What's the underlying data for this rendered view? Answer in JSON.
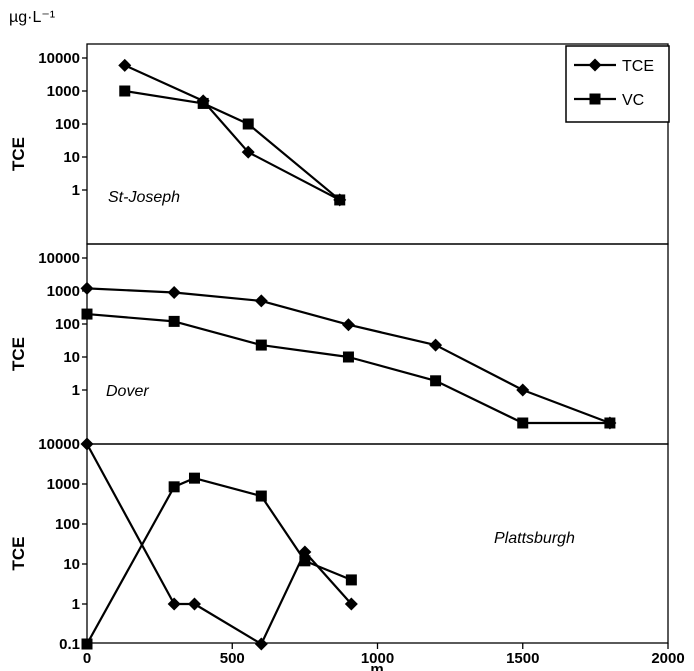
{
  "chart_data": {
    "type": "line",
    "unit_label": "µg·L⁻¹",
    "xlabel": "m",
    "xlim": [
      0,
      2000
    ],
    "x_ticks": [
      "0",
      "500",
      "1000",
      "1500",
      "2000"
    ],
    "yscale": "log",
    "legend": {
      "placement": "top-right",
      "entries": [
        {
          "name": "TCE",
          "marker": "diamond"
        },
        {
          "name": "VC",
          "marker": "square"
        }
      ]
    },
    "panels": [
      {
        "name": "St-Joseph",
        "ylabel": "TCE",
        "ylim": [
          0.1,
          10000
        ],
        "y_ticks": [
          {
            "value": 10000,
            "label": "10000"
          },
          {
            "value": 1000,
            "label": "1000"
          },
          {
            "value": 100,
            "label": "100"
          },
          {
            "value": 10,
            "label": "10"
          },
          {
            "value": 1,
            "label": "1"
          }
        ],
        "series": [
          {
            "name": "TCE",
            "marker": "diamond",
            "x": [
              130,
              400,
              555,
              870
            ],
            "y": [
              6000,
              500,
              14,
              0.5
            ]
          },
          {
            "name": "VC",
            "marker": "square",
            "x": [
              130,
              400,
              555,
              870
            ],
            "y": [
              1000,
              420,
              100,
              0.5
            ]
          }
        ]
      },
      {
        "name": "Dover",
        "ylabel": "TCE",
        "ylim": [
          0.1,
          10000
        ],
        "y_ticks": [
          {
            "value": 10000,
            "label": "10000"
          },
          {
            "value": 1000,
            "label": "1000"
          },
          {
            "value": 100,
            "label": "100"
          },
          {
            "value": 10,
            "label": "10"
          },
          {
            "value": 1,
            "label": "1"
          }
        ],
        "series": [
          {
            "name": "TCE",
            "marker": "diamond",
            "x": [
              0,
              300,
              600,
              900,
              1200,
              1500,
              1800
            ],
            "y": [
              1200,
              900,
              500,
              95,
              23,
              1,
              0.1
            ]
          },
          {
            "name": "VC",
            "marker": "square",
            "x": [
              0,
              300,
              600,
              900,
              1200,
              1500,
              1800
            ],
            "y": [
              200,
              120,
              23,
              10,
              1.9,
              0.1,
              0.1
            ]
          }
        ]
      },
      {
        "name": "Plattsburgh",
        "ylabel": "TCE",
        "ylim": [
          0.1,
          10000
        ],
        "y_ticks": [
          {
            "value": 10000,
            "label": "10000"
          },
          {
            "value": 1000,
            "label": "1000"
          },
          {
            "value": 100,
            "label": "100"
          },
          {
            "value": 10,
            "label": "10"
          },
          {
            "value": 1,
            "label": "1"
          },
          {
            "value": 0.1,
            "label": "0.1"
          }
        ],
        "series": [
          {
            "name": "TCE",
            "marker": "diamond",
            "x": [
              0,
              300,
              370,
              600,
              750,
              910
            ],
            "y": [
              10000,
              1,
              1,
              0.1,
              20,
              1
            ]
          },
          {
            "name": "VC",
            "marker": "square",
            "x": [
              0,
              300,
              370,
              600,
              750,
              910
            ],
            "y": [
              0.1,
              850,
              1400,
              500,
              12,
              4
            ]
          }
        ]
      }
    ]
  }
}
